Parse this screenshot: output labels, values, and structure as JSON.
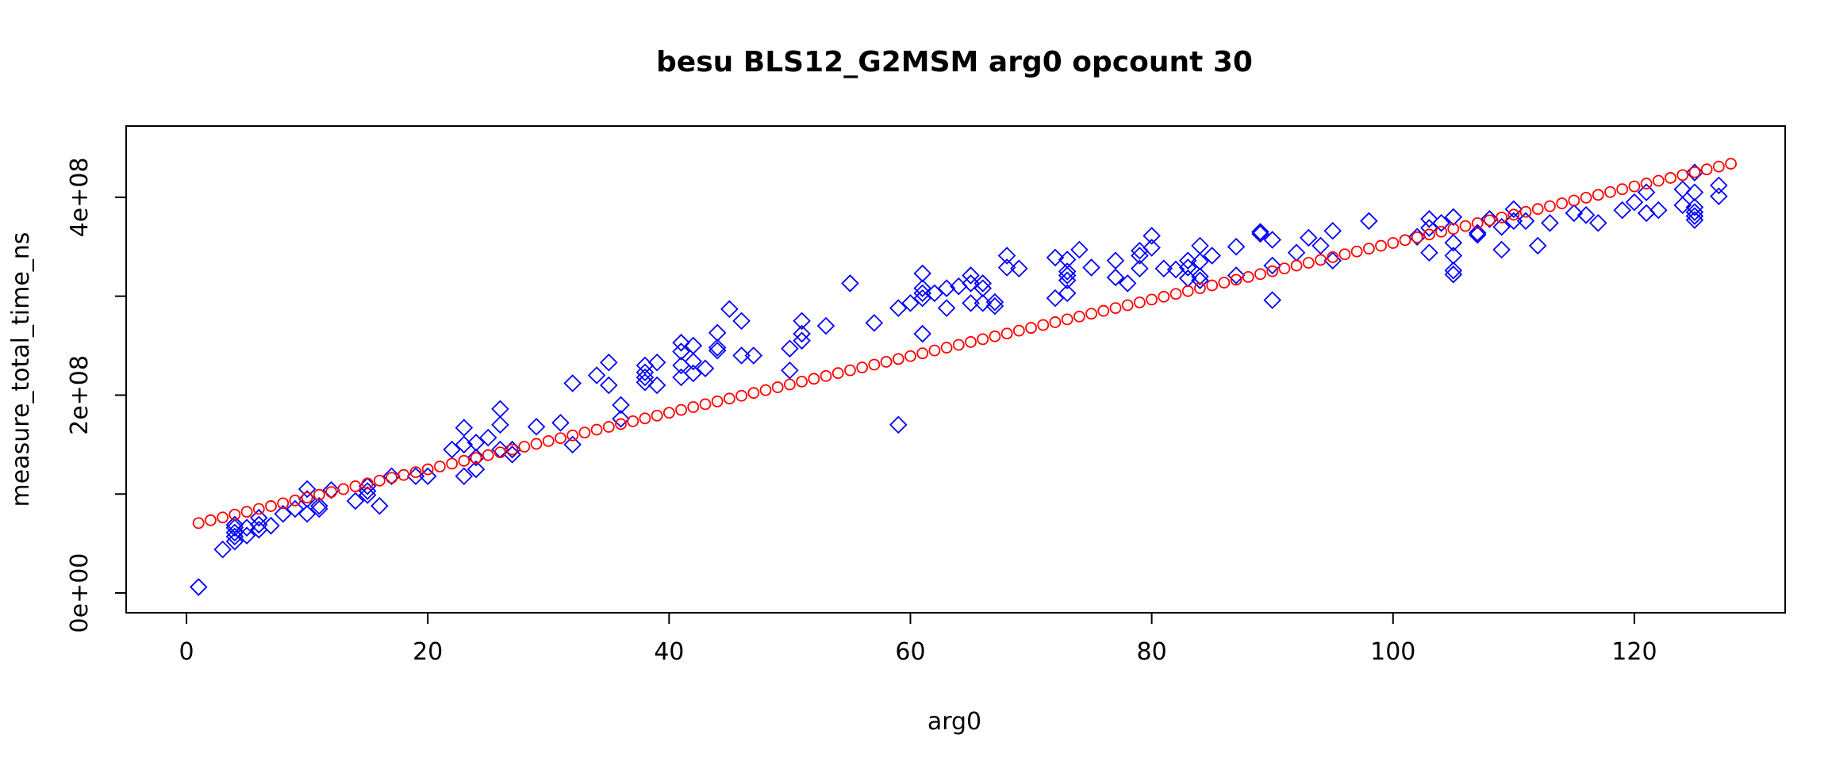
{
  "chart_data": {
    "type": "scatter",
    "title": "besu BLS12_G2MSM arg0 opcount 30",
    "xlabel": "arg0",
    "ylabel": "measure_total_time_ns",
    "xlim": [
      -5,
      132.5
    ],
    "ylim": [
      -20000000.0,
      472000000.0
    ],
    "xticks": [
      0,
      20,
      40,
      60,
      80,
      100,
      120
    ],
    "xtick_labels": [
      "0",
      "20",
      "40",
      "60",
      "80",
      "100",
      "120"
    ],
    "yticks": [
      0,
      100000000,
      200000000,
      300000000,
      400000000
    ],
    "ytick_labels": [
      "0e+00",
      "",
      "2e+08",
      "",
      "4e+08"
    ],
    "grid": false,
    "legend": "none",
    "series": [
      {
        "marker": "diamond",
        "color": "#0000ff",
        "points": [
          [
            1,
            6000000
          ],
          [
            3,
            44000000
          ],
          [
            4,
            52000000
          ],
          [
            4,
            57000000
          ],
          [
            4,
            61000000
          ],
          [
            4,
            66000000
          ],
          [
            4,
            69000000
          ],
          [
            5,
            58000000
          ],
          [
            5,
            66000000
          ],
          [
            6,
            64000000
          ],
          [
            6,
            69000000
          ],
          [
            6,
            76000000
          ],
          [
            7,
            68000000
          ],
          [
            8,
            80000000
          ],
          [
            9,
            85000000
          ],
          [
            10,
            80000000
          ],
          [
            10,
            95000000
          ],
          [
            10,
            105000000
          ],
          [
            11,
            85000000
          ],
          [
            11,
            88000000
          ],
          [
            12,
            104000000
          ],
          [
            14,
            93000000
          ],
          [
            15,
            99000000
          ],
          [
            15,
            103000000
          ],
          [
            15,
            108000000
          ],
          [
            16,
            88000000
          ],
          [
            17,
            118000000
          ],
          [
            19,
            118000000
          ],
          [
            20,
            118000000
          ],
          [
            22,
            145000000
          ],
          [
            23,
            118000000
          ],
          [
            23,
            150000000
          ],
          [
            23,
            167000000
          ],
          [
            24,
            125000000
          ],
          [
            24,
            137000000
          ],
          [
            24,
            152000000
          ],
          [
            25,
            157000000
          ],
          [
            26,
            145000000
          ],
          [
            26,
            170000000
          ],
          [
            26,
            186000000
          ],
          [
            27,
            140000000
          ],
          [
            27,
            145000000
          ],
          [
            29,
            168000000
          ],
          [
            31,
            172000000
          ],
          [
            32,
            150000000
          ],
          [
            32,
            212000000
          ],
          [
            34,
            220000000
          ],
          [
            35,
            210000000
          ],
          [
            35,
            233000000
          ],
          [
            36,
            176000000
          ],
          [
            36,
            190000000
          ],
          [
            38,
            213000000
          ],
          [
            38,
            218000000
          ],
          [
            38,
            223000000
          ],
          [
            38,
            230000000
          ],
          [
            39,
            210000000
          ],
          [
            39,
            233000000
          ],
          [
            41,
            218000000
          ],
          [
            41,
            230000000
          ],
          [
            41,
            244000000
          ],
          [
            41,
            253000000
          ],
          [
            42,
            222000000
          ],
          [
            42,
            234000000
          ],
          [
            42,
            250000000
          ],
          [
            43,
            227000000
          ],
          [
            44,
            245000000
          ],
          [
            44,
            248000000
          ],
          [
            44,
            263000000
          ],
          [
            45,
            287000000
          ],
          [
            46,
            240000000
          ],
          [
            46,
            275000000
          ],
          [
            47,
            240000000
          ],
          [
            50,
            225000000
          ],
          [
            50,
            247000000
          ],
          [
            51,
            255000000
          ],
          [
            51,
            262000000
          ],
          [
            51,
            275000000
          ],
          [
            53,
            270000000
          ],
          [
            55,
            313000000
          ],
          [
            57,
            273000000
          ],
          [
            59,
            170000000
          ],
          [
            59,
            288000000
          ],
          [
            60,
            293000000
          ],
          [
            61,
            262000000
          ],
          [
            61,
            298000000
          ],
          [
            61,
            303000000
          ],
          [
            61,
            308000000
          ],
          [
            61,
            323000000
          ],
          [
            62,
            303000000
          ],
          [
            63,
            288000000
          ],
          [
            63,
            308000000
          ],
          [
            64,
            310000000
          ],
          [
            65,
            293000000
          ],
          [
            65,
            313000000
          ],
          [
            65,
            321000000
          ],
          [
            66,
            293000000
          ],
          [
            66,
            308000000
          ],
          [
            66,
            313000000
          ],
          [
            67,
            290000000
          ],
          [
            67,
            294000000
          ],
          [
            68,
            329000000
          ],
          [
            68,
            341000000
          ],
          [
            69,
            328000000
          ],
          [
            72,
            298000000
          ],
          [
            72,
            339000000
          ],
          [
            73,
            303000000
          ],
          [
            73,
            316000000
          ],
          [
            73,
            321000000
          ],
          [
            73,
            325000000
          ],
          [
            73,
            337000000
          ],
          [
            74,
            347000000
          ],
          [
            75,
            329000000
          ],
          [
            77,
            319000000
          ],
          [
            77,
            336000000
          ],
          [
            78,
            313000000
          ],
          [
            79,
            328000000
          ],
          [
            79,
            341000000
          ],
          [
            79,
            346000000
          ],
          [
            80,
            349000000
          ],
          [
            80,
            361000000
          ],
          [
            81,
            328000000
          ],
          [
            82,
            327000000
          ],
          [
            83,
            318000000
          ],
          [
            83,
            329000000
          ],
          [
            83,
            336000000
          ],
          [
            84,
            316000000
          ],
          [
            84,
            320000000
          ],
          [
            84,
            335000000
          ],
          [
            84,
            351000000
          ],
          [
            85,
            341000000
          ],
          [
            87,
            321000000
          ],
          [
            87,
            350000000
          ],
          [
            89,
            363000000
          ],
          [
            89,
            365000000
          ],
          [
            90,
            296000000
          ],
          [
            90,
            331000000
          ],
          [
            90,
            357000000
          ],
          [
            92,
            344000000
          ],
          [
            93,
            359000000
          ],
          [
            94,
            351000000
          ],
          [
            95,
            336000000
          ],
          [
            95,
            366000000
          ],
          [
            98,
            376000000
          ],
          [
            102,
            360000000
          ],
          [
            103,
            344000000
          ],
          [
            103,
            369000000
          ],
          [
            103,
            378000000
          ],
          [
            104,
            374000000
          ],
          [
            105,
            322000000
          ],
          [
            105,
            326000000
          ],
          [
            105,
            341000000
          ],
          [
            105,
            354000000
          ],
          [
            105,
            380000000
          ],
          [
            107,
            362000000
          ],
          [
            107,
            364000000
          ],
          [
            108,
            378000000
          ],
          [
            109,
            347000000
          ],
          [
            109,
            370000000
          ],
          [
            110,
            376000000
          ],
          [
            110,
            388000000
          ],
          [
            111,
            376000000
          ],
          [
            112,
            351000000
          ],
          [
            113,
            374000000
          ],
          [
            115,
            384000000
          ],
          [
            116,
            382000000
          ],
          [
            117,
            374000000
          ],
          [
            119,
            387000000
          ],
          [
            120,
            395000000
          ],
          [
            121,
            384000000
          ],
          [
            121,
            405000000
          ],
          [
            122,
            387000000
          ],
          [
            124,
            392000000
          ],
          [
            124,
            408000000
          ],
          [
            125,
            377000000
          ],
          [
            125,
            381000000
          ],
          [
            125,
            385000000
          ],
          [
            125,
            390000000
          ],
          [
            125,
            405000000
          ],
          [
            125,
            425000000
          ],
          [
            127,
            401000000
          ],
          [
            127,
            412000000
          ]
        ]
      },
      {
        "marker": "circle",
        "color": "#ff0000",
        "x_start": 1,
        "x_end": 128,
        "intercept": 67800000,
        "slope": 2860000
      }
    ]
  }
}
